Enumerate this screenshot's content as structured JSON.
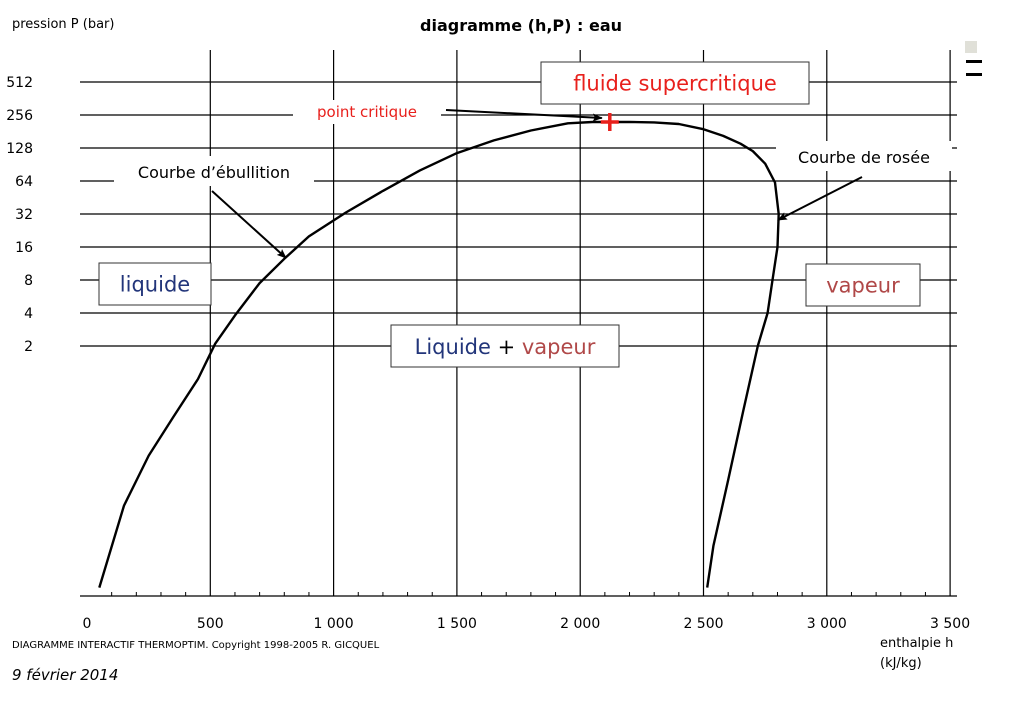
{
  "header": {
    "ylabel": "pression  P (bar)",
    "title": "diagramme (h,P) : eau"
  },
  "footer": {
    "credit": "DIAGRAMME INTERACTIF THERMOPTIM.   Copyright 1998-2005    R. GICQUEL",
    "date": "9 février 2014",
    "xlabel_line1": "enthalpie  h",
    "xlabel_line2": "(kJ/kg)"
  },
  "chart_data": {
    "type": "line",
    "title": "diagramme (h,P) : eau",
    "xlabel": "enthalpie  h (kJ/kg)",
    "ylabel": "pression  P (bar)",
    "xlim": [
      0,
      3500
    ],
    "yscale": "log2",
    "ylim": [
      0.01,
      800
    ],
    "x_ticks": [
      0,
      500,
      1000,
      1500,
      2000,
      2500,
      3000,
      3500
    ],
    "x_tick_labels": [
      "0",
      "500",
      "1 000",
      "1 500",
      "2 000",
      "2 500",
      "3 000",
      "3 500"
    ],
    "y_ticks": [
      2,
      4,
      8,
      16,
      32,
      64,
      128,
      256,
      512
    ],
    "y_tick_labels": [
      "2",
      "4",
      "8",
      "16",
      "32",
      "64",
      "128",
      "256",
      "512"
    ],
    "grid": true,
    "series": [
      {
        "name": "Courbe d'ébullition",
        "x": [
          50,
          150,
          250,
          350,
          450,
          520,
          600,
          700,
          800,
          900,
          1050,
          1200,
          1350,
          1500,
          1650,
          1800,
          1950,
          2050,
          2100
        ],
        "y": [
          0.0125,
          0.07,
          0.2,
          0.45,
          1.0,
          2.1,
          3.8,
          7.5,
          12.5,
          20,
          33,
          52,
          80,
          115,
          150,
          185,
          215,
          221,
          221
        ]
      },
      {
        "name": "Courbe de rosée",
        "x": [
          2100,
          2200,
          2300,
          2400,
          2500,
          2580,
          2650,
          2700,
          2750,
          2790,
          2805,
          2800,
          2780,
          2760,
          2720,
          2660,
          2600,
          2540,
          2515
        ],
        "y": [
          221,
          221,
          219,
          212,
          190,
          165,
          140,
          120,
          92,
          62,
          32,
          16,
          8,
          4,
          2,
          0.5,
          0.12,
          0.03,
          0.0125
        ]
      }
    ],
    "critical_point": {
      "h": 2120,
      "P": 221,
      "label": "point critique"
    },
    "annotations": [
      {
        "text": "fluide supercritique"
      },
      {
        "text": "point critique"
      },
      {
        "text": "Courbe d’ébullition"
      },
      {
        "text": "Courbe de rosée"
      },
      {
        "text": "liquide"
      },
      {
        "text": "vapeur"
      },
      {
        "text": "Liquide"
      },
      {
        "text": " + "
      },
      {
        "text": "vapeur"
      }
    ],
    "colors": {
      "liquid": "#22357a",
      "vapour": "#b04848",
      "critical": "#e8201c",
      "curve": "#000000"
    }
  }
}
